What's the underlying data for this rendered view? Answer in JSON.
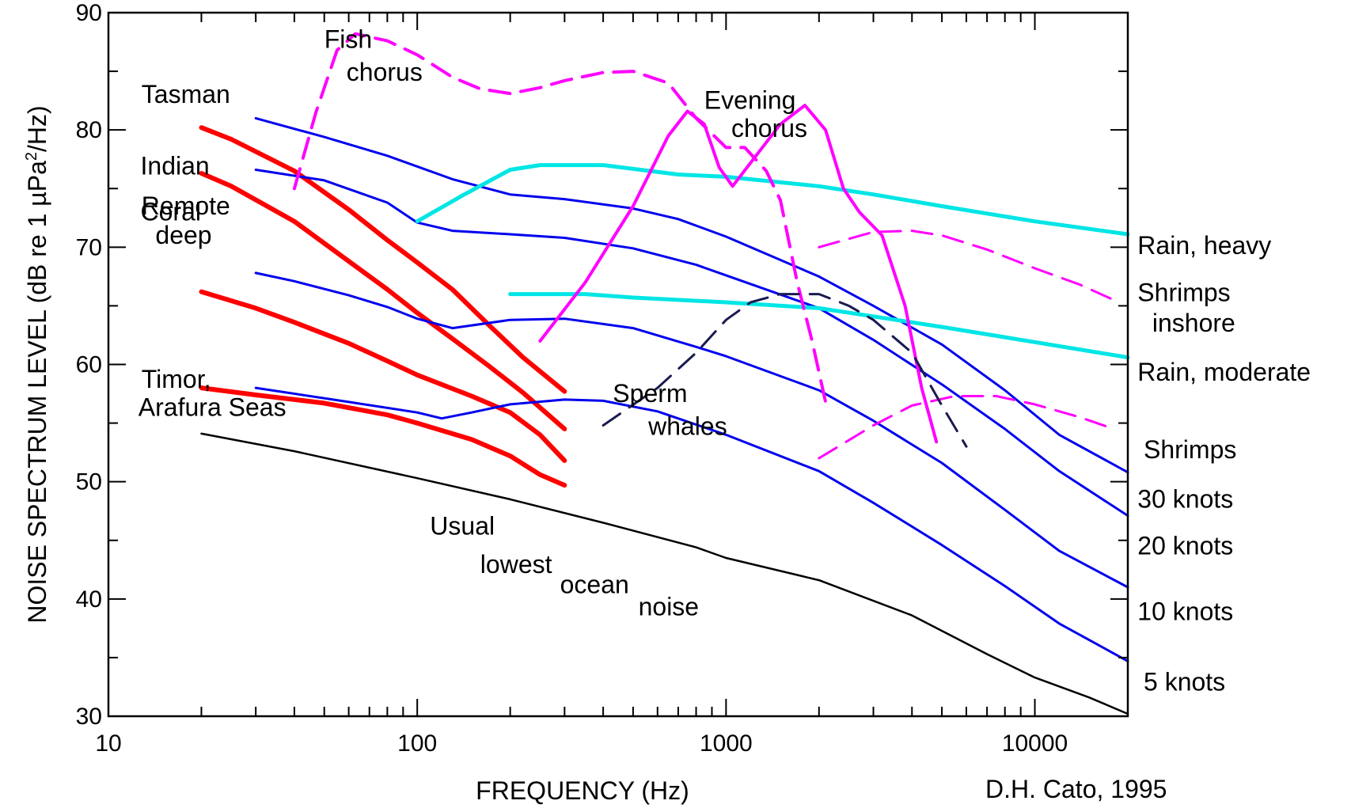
{
  "chart_data": {
    "type": "line",
    "xlabel": "FREQUENCY (Hz)",
    "ylabel_parts": [
      "NOISE SPECTRUM LEVEL (dB re 1 ",
      "µ",
      "Pa",
      "2",
      "/Hz)"
    ],
    "credit": "D.H. Cato, 1995",
    "x_scale": "log",
    "xlim": [
      10,
      20000
    ],
    "ylim": [
      30,
      90
    ],
    "x_ticks": [
      {
        "value": 10,
        "label": "10"
      },
      {
        "value": 100,
        "label": "100"
      },
      {
        "value": 1000,
        "label": "1000"
      },
      {
        "value": 10000,
        "label": "10000"
      }
    ],
    "y_ticks": [
      {
        "value": 30,
        "label": "30"
      },
      {
        "value": 40,
        "label": "40"
      },
      {
        "value": 50,
        "label": "50"
      },
      {
        "value": 60,
        "label": "60"
      },
      {
        "value": 70,
        "label": "70"
      },
      {
        "value": 80,
        "label": "80"
      },
      {
        "value": 90,
        "label": "90"
      }
    ],
    "grid": false,
    "colors": {
      "shallow_sea": "#ff0000",
      "wind": "#0000ee",
      "rain": "#00e5e5",
      "biological": "#ff00ff",
      "sperm_whales": "#1a1a50",
      "lowest": "#000000"
    },
    "series": [
      {
        "id": "tasman",
        "color": "#ff0000",
        "width": 6,
        "dash": false,
        "points": [
          [
            20,
            80.2
          ],
          [
            25,
            79.2
          ],
          [
            40,
            76.5
          ],
          [
            60,
            73.2
          ],
          [
            80,
            70.6
          ],
          [
            100,
            68.7
          ],
          [
            130,
            66.4
          ],
          [
            170,
            63.4
          ],
          [
            220,
            60.6
          ],
          [
            300,
            57.7
          ]
        ]
      },
      {
        "id": "indian",
        "color": "#ff0000",
        "width": 6,
        "dash": false,
        "points": [
          [
            20,
            76.3
          ],
          [
            25,
            75.2
          ],
          [
            40,
            72.2
          ],
          [
            60,
            68.8
          ],
          [
            80,
            66.4
          ],
          [
            100,
            64.4
          ],
          [
            130,
            62.2
          ],
          [
            170,
            59.9
          ],
          [
            220,
            57.6
          ],
          [
            300,
            54.5
          ]
        ]
      },
      {
        "id": "remote-deep",
        "color": "#ff0000",
        "width": 6,
        "dash": false,
        "points": [
          [
            20,
            66.2
          ],
          [
            30,
            64.8
          ],
          [
            40,
            63.6
          ],
          [
            60,
            61.8
          ],
          [
            80,
            60.3
          ],
          [
            100,
            59.1
          ],
          [
            150,
            57.3
          ],
          [
            200,
            55.9
          ],
          [
            250,
            54.0
          ],
          [
            300,
            51.8
          ]
        ]
      },
      {
        "id": "timor",
        "color": "#ff0000",
        "width": 6,
        "dash": false,
        "points": [
          [
            20,
            58.0
          ],
          [
            30,
            57.4
          ],
          [
            50,
            56.7
          ],
          [
            80,
            55.7
          ],
          [
            100,
            55.0
          ],
          [
            150,
            53.6
          ],
          [
            200,
            52.2
          ],
          [
            250,
            50.6
          ],
          [
            300,
            49.7
          ]
        ]
      },
      {
        "id": "wind-30",
        "color": "#0000ee",
        "width": 3,
        "dash": false,
        "points": [
          [
            30,
            81.0
          ],
          [
            50,
            79.4
          ],
          [
            80,
            77.8
          ],
          [
            130,
            75.8
          ],
          [
            200,
            74.5
          ],
          [
            300,
            74.1
          ],
          [
            500,
            73.3
          ],
          [
            700,
            72.4
          ],
          [
            1000,
            70.9
          ],
          [
            2000,
            67.5
          ],
          [
            3000,
            65.0
          ],
          [
            5000,
            61.7
          ],
          [
            8000,
            57.8
          ],
          [
            12000,
            54.0
          ],
          [
            20000,
            50.8
          ]
        ]
      },
      {
        "id": "wind-20",
        "color": "#0000ee",
        "width": 3,
        "dash": false,
        "points": [
          [
            30,
            76.6
          ],
          [
            50,
            75.7
          ],
          [
            80,
            73.8
          ],
          [
            100,
            72.1
          ],
          [
            130,
            71.4
          ],
          [
            200,
            71.1
          ],
          [
            300,
            70.8
          ],
          [
            500,
            69.9
          ],
          [
            800,
            68.5
          ],
          [
            1000,
            67.6
          ],
          [
            2000,
            64.8
          ],
          [
            3000,
            62.1
          ],
          [
            5000,
            58.3
          ],
          [
            8000,
            54.5
          ],
          [
            12000,
            50.9
          ],
          [
            20000,
            47.1
          ]
        ]
      },
      {
        "id": "wind-10",
        "color": "#0000ee",
        "width": 3,
        "dash": false,
        "points": [
          [
            30,
            67.8
          ],
          [
            40,
            67.1
          ],
          [
            60,
            65.9
          ],
          [
            80,
            64.9
          ],
          [
            100,
            63.9
          ],
          [
            130,
            63.1
          ],
          [
            200,
            63.8
          ],
          [
            300,
            63.9
          ],
          [
            500,
            63.1
          ],
          [
            800,
            61.5
          ],
          [
            1000,
            60.7
          ],
          [
            2000,
            57.8
          ],
          [
            3000,
            55.2
          ],
          [
            5000,
            51.6
          ],
          [
            8000,
            47.6
          ],
          [
            12000,
            44.1
          ],
          [
            20000,
            41.0
          ]
        ]
      },
      {
        "id": "wind-5",
        "color": "#0000ee",
        "width": 3,
        "dash": false,
        "points": [
          [
            30,
            58.0
          ],
          [
            60,
            56.8
          ],
          [
            100,
            55.9
          ],
          [
            120,
            55.4
          ],
          [
            150,
            55.9
          ],
          [
            200,
            56.6
          ],
          [
            300,
            57.0
          ],
          [
            400,
            56.9
          ],
          [
            600,
            56.0
          ],
          [
            1000,
            54.0
          ],
          [
            2000,
            50.9
          ],
          [
            3000,
            48.2
          ],
          [
            5000,
            44.6
          ],
          [
            8000,
            41.1
          ],
          [
            12000,
            37.9
          ],
          [
            20000,
            34.7
          ]
        ]
      },
      {
        "id": "rain-heavy",
        "color": "#00e5e5",
        "width": 5,
        "dash": false,
        "points": [
          [
            100,
            72.2
          ],
          [
            140,
            74.4
          ],
          [
            200,
            76.6
          ],
          [
            250,
            77.0
          ],
          [
            400,
            77.0
          ],
          [
            700,
            76.2
          ],
          [
            1000,
            76.0
          ],
          [
            2000,
            75.2
          ],
          [
            3000,
            74.5
          ],
          [
            5000,
            73.5
          ],
          [
            10000,
            72.2
          ],
          [
            20000,
            71.1
          ]
        ]
      },
      {
        "id": "rain-moderate",
        "color": "#00e5e5",
        "width": 5,
        "dash": false,
        "points": [
          [
            200,
            66.0
          ],
          [
            350,
            66.0
          ],
          [
            500,
            65.7
          ],
          [
            1000,
            65.3
          ],
          [
            2000,
            64.8
          ],
          [
            3000,
            64.1
          ],
          [
            5000,
            63.2
          ],
          [
            10000,
            61.9
          ],
          [
            20000,
            60.6
          ]
        ]
      },
      {
        "id": "fish-chorus",
        "color": "#ff00ff",
        "width": 4,
        "dash": true,
        "points": [
          [
            40,
            75.0
          ],
          [
            47,
            81.5
          ],
          [
            55,
            86.8
          ],
          [
            63,
            88.2
          ],
          [
            80,
            87.6
          ],
          [
            100,
            86.4
          ],
          [
            130,
            84.5
          ],
          [
            160,
            83.5
          ],
          [
            200,
            83.1
          ],
          [
            250,
            83.6
          ],
          [
            300,
            84.2
          ],
          [
            400,
            84.9
          ],
          [
            500,
            85.0
          ],
          [
            650,
            84.0
          ],
          [
            800,
            81.0
          ],
          [
            1000,
            78.5
          ],
          [
            1150,
            78.5
          ],
          [
            1350,
            76.5
          ],
          [
            1500,
            74.0
          ],
          [
            1700,
            67.0
          ],
          [
            1900,
            62.0
          ],
          [
            2100,
            56.8
          ]
        ]
      },
      {
        "id": "evening-chorus",
        "color": "#ff00ff",
        "width": 4,
        "dash": false,
        "points": [
          [
            250,
            62.0
          ],
          [
            350,
            67.0
          ],
          [
            500,
            73.5
          ],
          [
            650,
            79.5
          ],
          [
            750,
            81.6
          ],
          [
            850,
            80.5
          ],
          [
            950,
            76.8
          ],
          [
            1050,
            75.2
          ],
          [
            1250,
            77.8
          ],
          [
            1500,
            80.5
          ],
          [
            1800,
            82.1
          ],
          [
            2100,
            80.0
          ],
          [
            2400,
            75.0
          ],
          [
            2700,
            73.0
          ],
          [
            3200,
            71.0
          ],
          [
            3800,
            65.0
          ],
          [
            4300,
            58.0
          ],
          [
            4800,
            53.4
          ]
        ]
      },
      {
        "id": "shrimps-inshore",
        "color": "#ff00ff",
        "width": 3,
        "dash": true,
        "points": [
          [
            2000,
            70.0
          ],
          [
            3000,
            71.3
          ],
          [
            4000,
            71.4
          ],
          [
            5000,
            71.0
          ],
          [
            7000,
            69.8
          ],
          [
            10000,
            68.2
          ],
          [
            14000,
            66.8
          ],
          [
            18000,
            65.5
          ]
        ]
      },
      {
        "id": "shrimps",
        "color": "#ff00ff",
        "width": 3,
        "dash": true,
        "points": [
          [
            2000,
            52.0
          ],
          [
            3000,
            54.8
          ],
          [
            4000,
            56.5
          ],
          [
            5500,
            57.3
          ],
          [
            7500,
            57.3
          ],
          [
            10000,
            56.6
          ],
          [
            14000,
            55.5
          ],
          [
            18000,
            54.5
          ]
        ]
      },
      {
        "id": "sperm-whales",
        "color": "#1a1a50",
        "width": 3,
        "dash": true,
        "points": [
          [
            400,
            54.8
          ],
          [
            600,
            58.0
          ],
          [
            800,
            61.0
          ],
          [
            1000,
            63.8
          ],
          [
            1200,
            65.3
          ],
          [
            1500,
            66.0
          ],
          [
            2000,
            66.0
          ],
          [
            2500,
            65.0
          ],
          [
            3000,
            63.8
          ],
          [
            4000,
            61.0
          ],
          [
            5000,
            56.5
          ],
          [
            6000,
            53.0
          ]
        ]
      },
      {
        "id": "usual-lowest",
        "color": "#000000",
        "width": 2.5,
        "dash": false,
        "points": [
          [
            20,
            54.1
          ],
          [
            40,
            52.6
          ],
          [
            100,
            50.3
          ],
          [
            200,
            48.5
          ],
          [
            400,
            46.5
          ],
          [
            800,
            44.4
          ],
          [
            1000,
            43.5
          ],
          [
            2000,
            41.6
          ],
          [
            4000,
            38.6
          ],
          [
            7000,
            35.3
          ],
          [
            10000,
            33.3
          ],
          [
            15000,
            31.6
          ],
          [
            20000,
            30.2
          ]
        ]
      }
    ],
    "labels": [
      {
        "text": "Tasman",
        "at": [
          12.8,
          82.3
        ]
      },
      {
        "text": "Indian",
        "at": [
          12.7,
          76.2
        ]
      },
      {
        "text": "Coral",
        "at": [
          12.7,
          72.3
        ]
      },
      {
        "text": "Remote",
        "at": [
          12.8,
          72.8
        ]
      },
      {
        "text": "deep",
        "at": [
          14.2,
          70.3
        ]
      },
      {
        "text": "Timor,",
        "at": [
          12.8,
          58.0
        ]
      },
      {
        "text": "Arafura Seas",
        "at": [
          12.5,
          55.6
        ]
      },
      {
        "text": "Fish",
        "at": [
          50.0,
          87.0
        ]
      },
      {
        "text": "chorus",
        "at": [
          59.0,
          84.2
        ]
      },
      {
        "text": "Evening",
        "at": [
          850.0,
          81.8
        ]
      },
      {
        "text": "chorus",
        "at": [
          1040.0,
          79.4
        ]
      },
      {
        "text": "Sperm",
        "at": [
          430.0,
          56.8
        ]
      },
      {
        "text": "whales",
        "at": [
          560.0,
          54.0
        ]
      },
      {
        "text": "Usual",
        "at": [
          110.0,
          45.5
        ]
      },
      {
        "text": "lowest",
        "at": [
          160.0,
          42.2
        ]
      },
      {
        "text": "ocean",
        "at": [
          290.0,
          40.5
        ]
      },
      {
        "text": "noise",
        "at": [
          520.0,
          38.6
        ]
      },
      {
        "text": "Rain, heavy",
        "at": [
          21500.0,
          69.4
        ]
      },
      {
        "text": "Shrimps",
        "at": [
          21500.0,
          65.4
        ]
      },
      {
        "text": "inshore",
        "at": [
          24000.0,
          62.8
        ]
      },
      {
        "text": "Rain, moderate",
        "at": [
          21500.0,
          58.6
        ]
      },
      {
        "text": "Shrimps",
        "at": [
          22500.0,
          52.0
        ]
      },
      {
        "text": "30 knots",
        "at": [
          21500.0,
          47.8
        ]
      },
      {
        "text": "20 knots",
        "at": [
          21500.0,
          43.8
        ]
      },
      {
        "text": "10 knots",
        "at": [
          21500.0,
          38.2
        ]
      },
      {
        "text": "5 knots",
        "at": [
          22500.0,
          32.2
        ]
      }
    ]
  }
}
